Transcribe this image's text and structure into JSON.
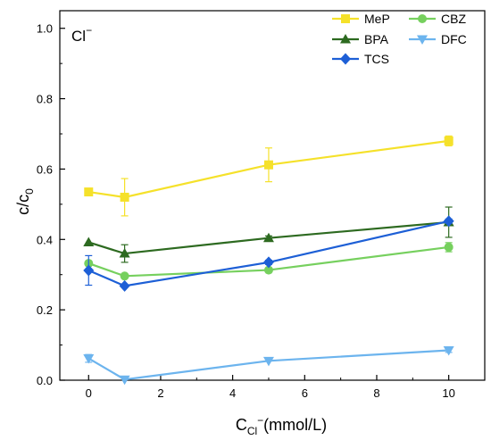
{
  "chart_data": {
    "type": "line",
    "annotation": {
      "base": "Cl",
      "sup": "−"
    },
    "xlabel": {
      "main": "C",
      "sub": "Cl",
      "sup": "−",
      "rest": "(mmol/L)"
    },
    "ylabel": {
      "main": "c/c",
      "sub": "0"
    },
    "xlim": [
      -0.8,
      11
    ],
    "ylim": [
      0,
      1.05
    ],
    "xticks": [
      0,
      2,
      4,
      6,
      8,
      10
    ],
    "yticks": [
      0.0,
      0.2,
      0.4,
      0.6,
      0.8,
      1.0
    ],
    "xtick_labels": [
      "0",
      "2",
      "4",
      "6",
      "8",
      "10"
    ],
    "ytick_labels": [
      "0.0",
      "0.2",
      "0.4",
      "0.6",
      "0.8",
      "1.0"
    ],
    "grid": false,
    "legend_position": "top-right",
    "series": [
      {
        "name": "MeP",
        "color": "#F5E12A",
        "marker": "square",
        "x": [
          0,
          1,
          5,
          10
        ],
        "y": [
          0.535,
          0.52,
          0.612,
          0.68
        ],
        "err": [
          0.006,
          0.053,
          0.048,
          0.014
        ]
      },
      {
        "name": "CBZ",
        "color": "#76D05E",
        "marker": "circle",
        "x": [
          0,
          1,
          5,
          10
        ],
        "y": [
          0.332,
          0.296,
          0.313,
          0.378
        ],
        "err": [
          0.005,
          0.004,
          0.006,
          0.013
        ]
      },
      {
        "name": "BPA",
        "color": "#2D6A20",
        "marker": "triangle-up",
        "x": [
          0,
          1,
          5,
          10
        ],
        "y": [
          0.392,
          0.36,
          0.404,
          0.449
        ],
        "err": [
          0.004,
          0.025,
          0.006,
          0.043
        ]
      },
      {
        "name": "DFC",
        "color": "#6CB4EE",
        "marker": "triangle-down",
        "x": [
          0,
          1,
          5,
          10
        ],
        "y": [
          0.062,
          0.002,
          0.055,
          0.085
        ],
        "err": [
          0.011,
          0.003,
          0.004,
          0.006
        ]
      },
      {
        "name": "TCS",
        "color": "#1D5FD6",
        "marker": "diamond",
        "x": [
          0,
          1,
          5,
          10
        ],
        "y": [
          0.312,
          0.268,
          0.335,
          0.452
        ],
        "err": [
          0.042,
          0.004,
          0.006,
          0.006
        ]
      }
    ]
  }
}
